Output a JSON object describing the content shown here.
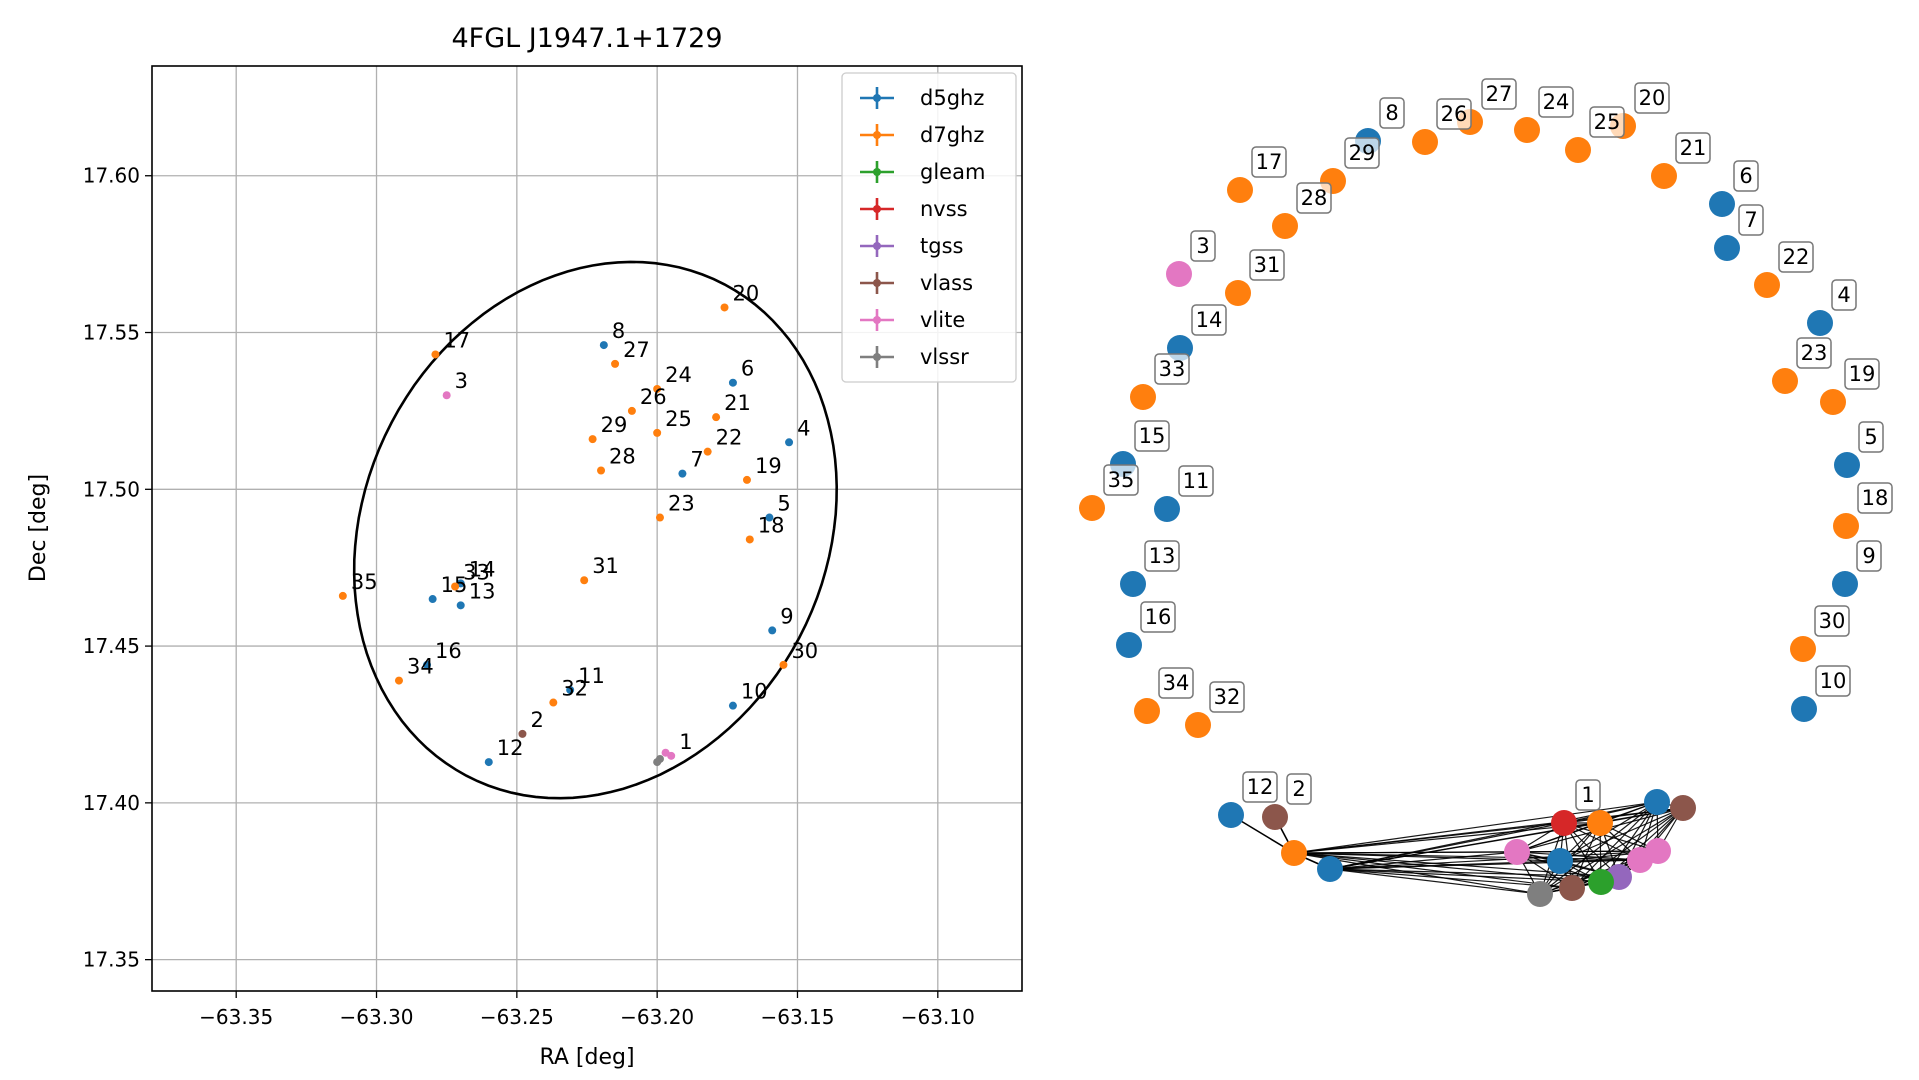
{
  "colors": {
    "d5ghz": "#1f77b4",
    "d7ghz": "#ff7f0e",
    "gleam": "#2ca02c",
    "nvss": "#d62728",
    "tgss": "#9467bd",
    "vlass": "#8c564b",
    "vlite": "#e377c2",
    "vlssr": "#7f7f7f"
  },
  "chart_data": [
    {
      "type": "scatter",
      "title": "4FGL J1947.1+1729",
      "xlabel": "RA [deg]",
      "ylabel": "Dec [deg]",
      "xlim": [
        -63.38,
        -63.07
      ],
      "ylim": [
        17.34,
        17.635
      ],
      "xticks": [
        -63.35,
        -63.3,
        -63.25,
        -63.2,
        -63.15,
        -63.1
      ],
      "xtick_labels": [
        "−63.35",
        "−63.30",
        "−63.25",
        "−63.20",
        "−63.15",
        "−63.10"
      ],
      "yticks": [
        17.35,
        17.4,
        17.45,
        17.5,
        17.55,
        17.6
      ],
      "ytick_labels": [
        "17.35",
        "17.40",
        "17.45",
        "17.50",
        "17.55",
        "17.60"
      ],
      "grid": true,
      "legend": {
        "position": "top-right",
        "entries": [
          "d5ghz",
          "d7ghz",
          "gleam",
          "nvss",
          "tgss",
          "vlass",
          "vlite",
          "vlssr"
        ]
      },
      "ellipse": {
        "center": [
          -63.222,
          17.487
        ],
        "semi_major": 0.092,
        "semi_minor": 0.079,
        "angle_deg": 44
      },
      "points": [
        {
          "label": "1",
          "x": -63.195,
          "y": 17.415,
          "survey": "vlite"
        },
        {
          "label": "",
          "x": -63.197,
          "y": 17.416,
          "survey": "vlite"
        },
        {
          "label": "",
          "x": -63.199,
          "y": 17.414,
          "survey": "vlssr"
        },
        {
          "label": "",
          "x": -63.2,
          "y": 17.413,
          "survey": "vlssr"
        },
        {
          "label": "2",
          "x": -63.248,
          "y": 17.422,
          "survey": "vlass"
        },
        {
          "label": "3",
          "x": -63.275,
          "y": 17.53,
          "survey": "vlite"
        },
        {
          "label": "4",
          "x": -63.153,
          "y": 17.515,
          "survey": "d5ghz"
        },
        {
          "label": "5",
          "x": -63.16,
          "y": 17.491,
          "survey": "d5ghz"
        },
        {
          "label": "6",
          "x": -63.173,
          "y": 17.534,
          "survey": "d5ghz"
        },
        {
          "label": "7",
          "x": -63.191,
          "y": 17.505,
          "survey": "d5ghz"
        },
        {
          "label": "8",
          "x": -63.219,
          "y": 17.546,
          "survey": "d5ghz"
        },
        {
          "label": "9",
          "x": -63.159,
          "y": 17.455,
          "survey": "d5ghz"
        },
        {
          "label": "10",
          "x": -63.173,
          "y": 17.431,
          "survey": "d5ghz"
        },
        {
          "label": "11",
          "x": -63.231,
          "y": 17.436,
          "survey": "d5ghz"
        },
        {
          "label": "12",
          "x": -63.26,
          "y": 17.413,
          "survey": "d5ghz"
        },
        {
          "label": "13",
          "x": -63.27,
          "y": 17.463,
          "survey": "d5ghz"
        },
        {
          "label": "14",
          "x": -63.27,
          "y": 17.47,
          "survey": "d5ghz"
        },
        {
          "label": "15",
          "x": -63.28,
          "y": 17.465,
          "survey": "d5ghz"
        },
        {
          "label": "16",
          "x": -63.282,
          "y": 17.444,
          "survey": "d5ghz"
        },
        {
          "label": "17",
          "x": -63.279,
          "y": 17.543,
          "survey": "d7ghz"
        },
        {
          "label": "18",
          "x": -63.167,
          "y": 17.484,
          "survey": "d7ghz"
        },
        {
          "label": "19",
          "x": -63.168,
          "y": 17.503,
          "survey": "d7ghz"
        },
        {
          "label": "20",
          "x": -63.176,
          "y": 17.558,
          "survey": "d7ghz"
        },
        {
          "label": "21",
          "x": -63.179,
          "y": 17.523,
          "survey": "d7ghz"
        },
        {
          "label": "22",
          "x": -63.182,
          "y": 17.512,
          "survey": "d7ghz"
        },
        {
          "label": "23",
          "x": -63.199,
          "y": 17.491,
          "survey": "d7ghz"
        },
        {
          "label": "24",
          "x": -63.2,
          "y": 17.532,
          "survey": "d7ghz"
        },
        {
          "label": "25",
          "x": -63.2,
          "y": 17.518,
          "survey": "d7ghz"
        },
        {
          "label": "26",
          "x": -63.209,
          "y": 17.525,
          "survey": "d7ghz"
        },
        {
          "label": "27",
          "x": -63.215,
          "y": 17.54,
          "survey": "d7ghz"
        },
        {
          "label": "28",
          "x": -63.22,
          "y": 17.506,
          "survey": "d7ghz"
        },
        {
          "label": "29",
          "x": -63.223,
          "y": 17.516,
          "survey": "d7ghz"
        },
        {
          "label": "30",
          "x": -63.155,
          "y": 17.444,
          "survey": "d7ghz"
        },
        {
          "label": "31",
          "x": -63.226,
          "y": 17.471,
          "survey": "d7ghz"
        },
        {
          "label": "32",
          "x": -63.237,
          "y": 17.432,
          "survey": "d7ghz"
        },
        {
          "label": "33",
          "x": -63.272,
          "y": 17.469,
          "survey": "d7ghz"
        },
        {
          "label": "34",
          "x": -63.292,
          "y": 17.439,
          "survey": "d7ghz"
        },
        {
          "label": "35",
          "x": -63.312,
          "y": 17.466,
          "survey": "d7ghz"
        }
      ]
    },
    {
      "type": "network",
      "nodes": [
        {
          "label": "8",
          "survey": "d5ghz"
        },
        {
          "label": "26",
          "survey": "d7ghz"
        },
        {
          "label": "27",
          "survey": "d7ghz"
        },
        {
          "label": "24",
          "survey": "d7ghz"
        },
        {
          "label": "20",
          "survey": "d7ghz"
        },
        {
          "label": "29",
          "survey": "d7ghz"
        },
        {
          "label": "25",
          "survey": "d7ghz"
        },
        {
          "label": "21",
          "survey": "d7ghz"
        },
        {
          "label": "17",
          "survey": "d7ghz"
        },
        {
          "label": "6",
          "survey": "d5ghz"
        },
        {
          "label": "28",
          "survey": "d7ghz"
        },
        {
          "label": "7",
          "survey": "d5ghz"
        },
        {
          "label": "3",
          "survey": "vlite"
        },
        {
          "label": "31",
          "survey": "d7ghz"
        },
        {
          "label": "22",
          "survey": "d7ghz"
        },
        {
          "label": "4",
          "survey": "d5ghz"
        },
        {
          "label": "14",
          "survey": "d5ghz"
        },
        {
          "label": "23",
          "survey": "d7ghz"
        },
        {
          "label": "19",
          "survey": "d7ghz"
        },
        {
          "label": "33",
          "survey": "d7ghz"
        },
        {
          "label": "15",
          "survey": "d5ghz"
        },
        {
          "label": "5",
          "survey": "d5ghz"
        },
        {
          "label": "35",
          "survey": "d7ghz"
        },
        {
          "label": "11",
          "survey": "d5ghz"
        },
        {
          "label": "18",
          "survey": "d7ghz"
        },
        {
          "label": "13",
          "survey": "d5ghz"
        },
        {
          "label": "9",
          "survey": "d5ghz"
        },
        {
          "label": "16",
          "survey": "d5ghz"
        },
        {
          "label": "30",
          "survey": "d7ghz"
        },
        {
          "label": "34",
          "survey": "d7ghz"
        },
        {
          "label": "32",
          "survey": "d7ghz"
        },
        {
          "label": "10",
          "survey": "d5ghz"
        },
        {
          "label": "12",
          "survey": "d5ghz"
        },
        {
          "label": "2",
          "survey": "vlass"
        },
        {
          "label": "",
          "survey": "d7ghz"
        },
        {
          "label": "",
          "survey": "d5ghz"
        },
        {
          "label": "1",
          "survey": "nvss"
        },
        {
          "label": "",
          "survey": "d7ghz"
        },
        {
          "label": "",
          "survey": "d5ghz"
        },
        {
          "label": "",
          "survey": "vlass"
        },
        {
          "label": "",
          "survey": "d5ghz"
        },
        {
          "label": "",
          "survey": "vlite"
        },
        {
          "label": "",
          "survey": "vlite"
        },
        {
          "label": "",
          "survey": "vlite"
        },
        {
          "label": "",
          "survey": "tgss"
        },
        {
          "label": "",
          "survey": "gleam"
        },
        {
          "label": "",
          "survey": "vlass"
        },
        {
          "label": "",
          "survey": "vlssr"
        }
      ]
    }
  ]
}
